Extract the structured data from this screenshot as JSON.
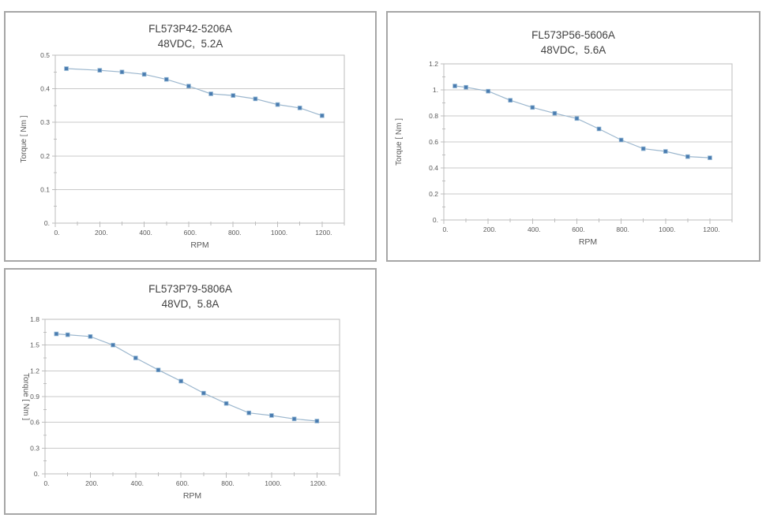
{
  "colors": {
    "line": "#9cb7ce",
    "marker": "#4a7cb0",
    "marker_edge": "#8fb4d2",
    "grid": "#c9c9c9",
    "axis": "#bdbdbd",
    "tick_text": "#595959",
    "title_text": "#3f3f3f",
    "panel_border": "#a6a6a6",
    "background": "#ffffff"
  },
  "chart_data": [
    {
      "type": "line",
      "title": "FL573P42-5206A",
      "subtitle": "48VDC,  5.2A",
      "xlabel": "RPM",
      "ylabel": "Torque [ Nm ]",
      "legend": "none",
      "grid": "horizontal",
      "marker": "square",
      "x": [
        50,
        200,
        300,
        400,
        500,
        600,
        700,
        800,
        900,
        1000,
        1100,
        1200
      ],
      "y": [
        0.46,
        0.455,
        0.45,
        0.443,
        0.428,
        0.408,
        0.385,
        0.38,
        0.37,
        0.353,
        0.343,
        0.32
      ],
      "xlim": [
        0,
        1300
      ],
      "ylim": [
        0,
        0.5
      ],
      "x_minor_step": 100,
      "y_minor_step": 0.05,
      "xticks": {
        "values": [
          0,
          200,
          400,
          600,
          800,
          1000,
          1200
        ],
        "labels": [
          "0.",
          "200.",
          "400.",
          "600.",
          "800.",
          "1000.",
          "1200."
        ]
      },
      "yticks": {
        "values": [
          0,
          0.1,
          0.2,
          0.3,
          0.4,
          0.5
        ],
        "labels": [
          "0.",
          "0.1",
          "0.2",
          "0.3",
          "0.4",
          "0.5"
        ]
      }
    },
    {
      "type": "line",
      "title": "FL573P56-5606A",
      "subtitle": "48VDC,  5.6A",
      "xlabel": "RPM",
      "ylabel": "Torque [ Nm ]",
      "legend": "none",
      "grid": "horizontal",
      "marker": "square",
      "x": [
        50,
        100,
        200,
        300,
        400,
        500,
        600,
        700,
        800,
        900,
        1000,
        1100,
        1200
      ],
      "y": [
        1.03,
        1.02,
        0.99,
        0.92,
        0.865,
        0.82,
        0.78,
        0.7,
        0.615,
        0.548,
        0.527,
        0.487,
        0.478
      ],
      "xlim": [
        0,
        1300
      ],
      "ylim": [
        0,
        1.2
      ],
      "x_minor_step": 100,
      "y_minor_step": 0.1,
      "xticks": {
        "values": [
          0,
          200,
          400,
          600,
          800,
          1000,
          1200
        ],
        "labels": [
          "0.",
          "200.",
          "400.",
          "600.",
          "800.",
          "1000.",
          "1200."
        ]
      },
      "yticks": {
        "values": [
          0,
          0.2,
          0.4,
          0.6,
          0.8,
          1.0,
          1.2
        ],
        "labels": [
          "0.",
          "0.2",
          "0.4",
          "0.6",
          "0.8",
          "1.",
          "1.2"
        ]
      }
    },
    {
      "type": "line",
      "title": "FL573P79-5806A",
      "subtitle": "48VD,  5.8A",
      "xlabel": "RPM",
      "ylabel": "Torque [ Nm ]",
      "legend": "none",
      "grid": "horizontal",
      "marker": "square",
      "x": [
        50,
        100,
        200,
        300,
        400,
        500,
        600,
        700,
        800,
        900,
        1000,
        1100,
        1200
      ],
      "y": [
        1.63,
        1.62,
        1.6,
        1.5,
        1.35,
        1.21,
        1.08,
        0.94,
        0.82,
        0.71,
        0.68,
        0.64,
        0.615
      ],
      "xlim": [
        0,
        1300
      ],
      "ylim": [
        0,
        1.8
      ],
      "x_minor_step": 100,
      "y_minor_step": 0.15,
      "xticks": {
        "values": [
          0,
          200,
          400,
          600,
          800,
          1000,
          1200
        ],
        "labels": [
          "0.",
          "200.",
          "400.",
          "600.",
          "800.",
          "1000.",
          "1200."
        ]
      },
      "yticks": {
        "values": [
          0,
          0.3,
          0.6,
          0.9,
          1.2,
          1.5,
          1.8
        ],
        "labels": [
          "0.",
          "0.3",
          "0.6",
          "0.9",
          "1.2",
          "1.5",
          "1.8"
        ]
      }
    }
  ]
}
